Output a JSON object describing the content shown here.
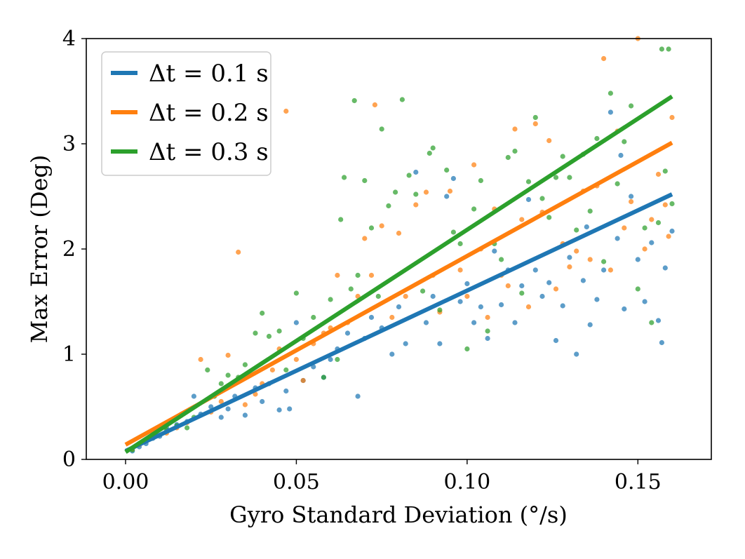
{
  "chart_data": {
    "type": "scatter",
    "title": "",
    "xlabel": "Gyro Standard Deviation (°/s)",
    "ylabel": "Max Error (Deg)",
    "xlim": [
      -0.0115,
      0.1715
    ],
    "ylim": [
      0,
      4
    ],
    "xticks": [
      0.0,
      0.05,
      0.1,
      0.15
    ],
    "xtick_labels": [
      "0.00",
      "0.05",
      "0.10",
      "0.15"
    ],
    "yticks": [
      0,
      1,
      2,
      3,
      4
    ],
    "ytick_labels": [
      "0",
      "1",
      "2",
      "3",
      "4"
    ],
    "grid": false,
    "legend_position": "upper-left",
    "series": [
      {
        "name": "Δt = 0.1 s",
        "color": "#1f77b4",
        "fit_line": {
          "x": [
            0.0,
            0.16
          ],
          "y": [
            0.08,
            2.52
          ]
        },
        "points": [
          [
            0.002,
            0.08
          ],
          [
            0.004,
            0.12
          ],
          [
            0.006,
            0.15
          ],
          [
            0.008,
            0.2
          ],
          [
            0.01,
            0.22
          ],
          [
            0.012,
            0.3
          ],
          [
            0.015,
            0.33
          ],
          [
            0.018,
            0.36
          ],
          [
            0.02,
            0.6
          ],
          [
            0.022,
            0.43
          ],
          [
            0.025,
            0.5
          ],
          [
            0.028,
            0.4
          ],
          [
            0.03,
            0.48
          ],
          [
            0.032,
            0.6
          ],
          [
            0.035,
            0.42
          ],
          [
            0.038,
            0.68
          ],
          [
            0.04,
            0.55
          ],
          [
            0.042,
            0.72
          ],
          [
            0.045,
            0.47
          ],
          [
            0.047,
            0.65
          ],
          [
            0.048,
            0.48
          ],
          [
            0.05,
            1.3
          ],
          [
            0.052,
            0.75
          ],
          [
            0.055,
            0.88
          ],
          [
            0.058,
            0.78
          ],
          [
            0.06,
            0.95
          ],
          [
            0.062,
            1.05
          ],
          [
            0.065,
            1.2
          ],
          [
            0.068,
            0.6
          ],
          [
            0.07,
            1.15
          ],
          [
            0.072,
            1.35
          ],
          [
            0.075,
            1.25
          ],
          [
            0.078,
            1.0
          ],
          [
            0.08,
            1.45
          ],
          [
            0.082,
            1.1
          ],
          [
            0.085,
            2.73
          ],
          [
            0.088,
            1.3
          ],
          [
            0.09,
            1.55
          ],
          [
            0.092,
            1.1
          ],
          [
            0.094,
            2.5
          ],
          [
            0.096,
            2.67
          ],
          [
            0.098,
            1.5
          ],
          [
            0.1,
            1.67
          ],
          [
            0.102,
            1.3
          ],
          [
            0.104,
            1.45
          ],
          [
            0.106,
            1.15
          ],
          [
            0.108,
            1.98
          ],
          [
            0.11,
            1.47
          ],
          [
            0.112,
            1.8
          ],
          [
            0.114,
            1.3
          ],
          [
            0.116,
            1.65
          ],
          [
            0.118,
            2.47
          ],
          [
            0.12,
            1.8
          ],
          [
            0.122,
            1.55
          ],
          [
            0.124,
            1.68
          ],
          [
            0.126,
            1.13
          ],
          [
            0.128,
            1.46
          ],
          [
            0.13,
            1.92
          ],
          [
            0.132,
            1.0
          ],
          [
            0.134,
            1.7
          ],
          [
            0.136,
            1.28
          ],
          [
            0.138,
            1.52
          ],
          [
            0.14,
            1.8
          ],
          [
            0.142,
            3.3
          ],
          [
            0.144,
            2.1
          ],
          [
            0.146,
            1.43
          ],
          [
            0.148,
            2.5
          ],
          [
            0.15,
            1.9
          ],
          [
            0.152,
            1.5
          ],
          [
            0.154,
            2.06
          ],
          [
            0.156,
            1.32
          ],
          [
            0.158,
            1.82
          ],
          [
            0.16,
            2.17
          ],
          [
            0.157,
            1.11
          ],
          [
            0.145,
            2.89
          ],
          [
            0.135,
            2.21
          ]
        ]
      },
      {
        "name": "Δt = 0.2 s",
        "color": "#ff7f0e",
        "fit_line": {
          "x": [
            0.0,
            0.16
          ],
          "y": [
            0.14,
            3.01
          ]
        },
        "points": [
          [
            0.002,
            0.1
          ],
          [
            0.004,
            0.14
          ],
          [
            0.006,
            0.18
          ],
          [
            0.008,
            0.22
          ],
          [
            0.012,
            0.25
          ],
          [
            0.015,
            0.3
          ],
          [
            0.018,
            0.35
          ],
          [
            0.022,
            0.95
          ],
          [
            0.025,
            0.45
          ],
          [
            0.028,
            0.55
          ],
          [
            0.03,
            0.99
          ],
          [
            0.033,
            1.97
          ],
          [
            0.035,
            0.52
          ],
          [
            0.038,
            0.62
          ],
          [
            0.04,
            0.72
          ],
          [
            0.043,
            0.85
          ],
          [
            0.045,
            1.05
          ],
          [
            0.047,
            3.31
          ],
          [
            0.05,
            0.95
          ],
          [
            0.052,
            0.75
          ],
          [
            0.055,
            1.1
          ],
          [
            0.058,
            1.2
          ],
          [
            0.06,
            1.25
          ],
          [
            0.062,
            1.75
          ],
          [
            0.065,
            1.3
          ],
          [
            0.068,
            1.55
          ],
          [
            0.07,
            2.1
          ],
          [
            0.072,
            1.75
          ],
          [
            0.073,
            3.37
          ],
          [
            0.075,
            2.22
          ],
          [
            0.078,
            1.35
          ],
          [
            0.08,
            2.15
          ],
          [
            0.082,
            1.55
          ],
          [
            0.085,
            2.42
          ],
          [
            0.088,
            2.54
          ],
          [
            0.09,
            1.75
          ],
          [
            0.092,
            1.4
          ],
          [
            0.095,
            2.55
          ],
          [
            0.098,
            1.8
          ],
          [
            0.1,
            1.55
          ],
          [
            0.102,
            2.8
          ],
          [
            0.104,
            2.0
          ],
          [
            0.106,
            1.35
          ],
          [
            0.108,
            2.38
          ],
          [
            0.11,
            1.75
          ],
          [
            0.112,
            1.65
          ],
          [
            0.114,
            3.14
          ],
          [
            0.116,
            2.28
          ],
          [
            0.118,
            1.45
          ],
          [
            0.12,
            3.19
          ],
          [
            0.122,
            2.35
          ],
          [
            0.124,
            3.03
          ],
          [
            0.126,
            1.62
          ],
          [
            0.128,
            2.05
          ],
          [
            0.13,
            1.83
          ],
          [
            0.132,
            1.98
          ],
          [
            0.134,
            2.55
          ],
          [
            0.136,
            1.9
          ],
          [
            0.138,
            2.6
          ],
          [
            0.14,
            3.81
          ],
          [
            0.142,
            1.8
          ],
          [
            0.144,
            3.12
          ],
          [
            0.146,
            2.2
          ],
          [
            0.148,
            2.45
          ],
          [
            0.15,
            4.0
          ],
          [
            0.152,
            2.0
          ],
          [
            0.154,
            2.28
          ],
          [
            0.156,
            2.71
          ],
          [
            0.158,
            2.42
          ],
          [
            0.16,
            3.25
          ],
          [
            0.159,
            2.12
          ]
        ]
      },
      {
        "name": "Δt = 0.3 s",
        "color": "#2ca02c",
        "fit_line": {
          "x": [
            0.0,
            0.16
          ],
          "y": [
            0.07,
            3.45
          ]
        },
        "points": [
          [
            0.002,
            0.09
          ],
          [
            0.004,
            0.15
          ],
          [
            0.006,
            0.18
          ],
          [
            0.008,
            0.25
          ],
          [
            0.012,
            0.28
          ],
          [
            0.015,
            0.32
          ],
          [
            0.018,
            0.3
          ],
          [
            0.02,
            0.4
          ],
          [
            0.024,
            0.85
          ],
          [
            0.026,
            0.6
          ],
          [
            0.028,
            0.72
          ],
          [
            0.03,
            0.8
          ],
          [
            0.033,
            0.78
          ],
          [
            0.035,
            0.9
          ],
          [
            0.038,
            1.2
          ],
          [
            0.04,
            1.39
          ],
          [
            0.042,
            1.17
          ],
          [
            0.045,
            1.22
          ],
          [
            0.047,
            0.85
          ],
          [
            0.05,
            1.58
          ],
          [
            0.052,
            1.15
          ],
          [
            0.055,
            1.35
          ],
          [
            0.058,
            0.78
          ],
          [
            0.06,
            1.52
          ],
          [
            0.062,
            0.95
          ],
          [
            0.063,
            2.28
          ],
          [
            0.064,
            2.68
          ],
          [
            0.066,
            1.62
          ],
          [
            0.067,
            3.41
          ],
          [
            0.068,
            1.75
          ],
          [
            0.07,
            2.65
          ],
          [
            0.072,
            2.2
          ],
          [
            0.074,
            1.55
          ],
          [
            0.075,
            3.14
          ],
          [
            0.077,
            2.41
          ],
          [
            0.079,
            2.54
          ],
          [
            0.081,
            3.42
          ],
          [
            0.083,
            2.7
          ],
          [
            0.085,
            2.52
          ],
          [
            0.087,
            1.6
          ],
          [
            0.089,
            2.91
          ],
          [
            0.09,
            2.96
          ],
          [
            0.092,
            1.42
          ],
          [
            0.094,
            2.75
          ],
          [
            0.096,
            2.16
          ],
          [
            0.098,
            2.05
          ],
          [
            0.1,
            1.05
          ],
          [
            0.102,
            2.38
          ],
          [
            0.104,
            2.65
          ],
          [
            0.106,
            1.22
          ],
          [
            0.108,
            2.05
          ],
          [
            0.11,
            1.9
          ],
          [
            0.112,
            2.87
          ],
          [
            0.114,
            2.93
          ],
          [
            0.116,
            1.58
          ],
          [
            0.118,
            2.64
          ],
          [
            0.12,
            3.25
          ],
          [
            0.122,
            2.48
          ],
          [
            0.124,
            2.3
          ],
          [
            0.126,
            2.68
          ],
          [
            0.128,
            2.88
          ],
          [
            0.13,
            2.68
          ],
          [
            0.132,
            2.18
          ],
          [
            0.134,
            2.9
          ],
          [
            0.136,
            2.36
          ],
          [
            0.138,
            3.05
          ],
          [
            0.14,
            1.88
          ],
          [
            0.142,
            3.48
          ],
          [
            0.144,
            2.62
          ],
          [
            0.146,
            3.02
          ],
          [
            0.148,
            3.36
          ],
          [
            0.15,
            1.62
          ],
          [
            0.152,
            2.2
          ],
          [
            0.154,
            1.3
          ],
          [
            0.156,
            2.25
          ],
          [
            0.157,
            3.9
          ],
          [
            0.159,
            3.9
          ],
          [
            0.16,
            2.43
          ],
          [
            0.158,
            2.74
          ]
        ]
      }
    ]
  }
}
